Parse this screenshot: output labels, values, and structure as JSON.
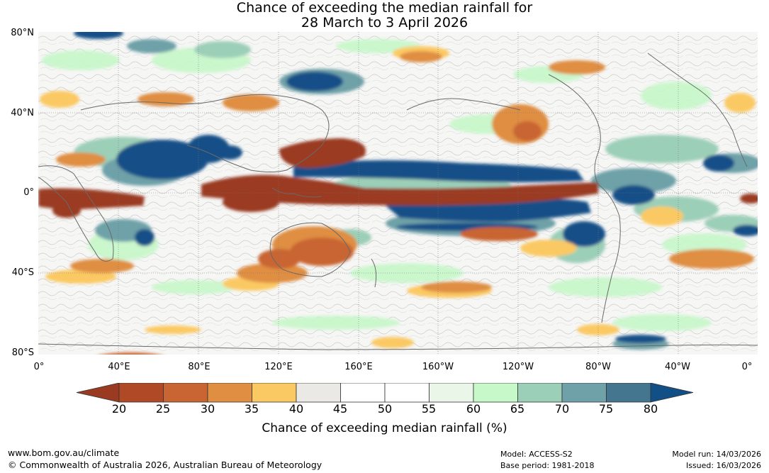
{
  "title": {
    "line1": "Chance of exceeding the median rainfall for",
    "line2": "28 March to 3 April 2026"
  },
  "map": {
    "projection": "equirectangular, central longitude 180",
    "lat_labels": [
      "80°N",
      "40°N",
      "0°",
      "40°S",
      "80°S"
    ],
    "lon_labels": [
      "0°",
      "40°E",
      "80°E",
      "120°E",
      "160°E",
      "160°W",
      "120°W",
      "80°W",
      "40°W",
      "0°"
    ],
    "features": [
      {
        "name": "equatorial-west-pacific-dry-band",
        "category": "20-25"
      },
      {
        "name": "maritime-continent-dry-area",
        "category": "20-25"
      },
      {
        "name": "north-west-pacific-dry-area",
        "category": "25-30"
      },
      {
        "name": "northern-australia-dry-area",
        "category": "25-35"
      },
      {
        "name": "east-pacific-wet-band-north",
        "category": "75-80"
      },
      {
        "name": "east-pacific-wet-band-south",
        "category": "75-80"
      },
      {
        "name": "south-asia-wet-area",
        "category": "75-80"
      },
      {
        "name": "north-atlantic-wet-band",
        "category": "70-80"
      },
      {
        "name": "equatorial-atlantic-africa-dry-band",
        "category": "20-25"
      }
    ]
  },
  "colorbar": {
    "ticks": [
      "20",
      "25",
      "30",
      "35",
      "40",
      "45",
      "50",
      "55",
      "60",
      "65",
      "70",
      "75",
      "80"
    ],
    "colors": {
      "below_20": "#9a3a20",
      "20-25": "#b04a26",
      "25-30": "#c96532",
      "30-35": "#df8e42",
      "35-40": "#fbc963",
      "40-45": "#ebe9e5",
      "45-50": "#ffffff",
      "50-55": "#ffffff",
      "55-60": "#e9f6e8",
      "60-65": "#c7f8c9",
      "65-70": "#9ccfb8",
      "70-75": "#6ea1a8",
      "75-80": "#44768f",
      "above_80": "#134f87"
    },
    "label": "Chance of exceeding median rainfall (%)"
  },
  "footer": {
    "website": "www.bom.gov.au/climate",
    "copyright": "© Commonwealth of Australia 2026, Australian Bureau of Meteorology",
    "model": "Model: ACCESS-S2",
    "base_period": "Base period: 1981-2018",
    "model_run": "Model run: 14/03/2026",
    "issued": "Issued: 16/03/2026"
  }
}
